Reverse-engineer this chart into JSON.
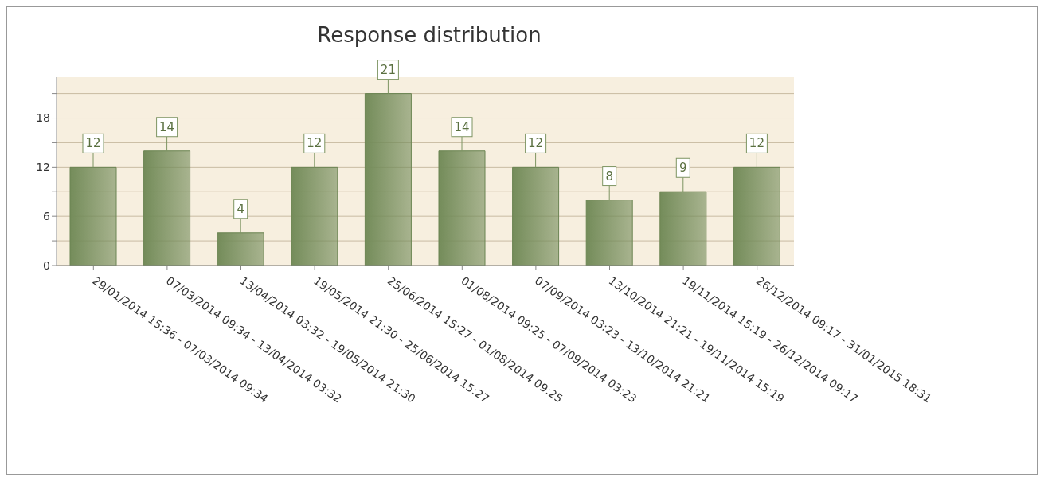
{
  "chart_data": {
    "type": "bar",
    "title": "Response distribution",
    "categories": [
      "29/01/2014 15:36 - 07/03/2014 09:34",
      "07/03/2014 09:34 - 13/04/2014 03:32",
      "13/04/2014 03:32 - 19/05/2014 21:30",
      "19/05/2014 21:30 - 25/06/2014 15:27",
      "25/06/2014 15:27 - 01/08/2014 09:25",
      "01/08/2014 09:25 - 07/09/2014 03:23",
      "07/09/2014 03:23 - 13/10/2014 21:21",
      "13/10/2014 21:21 - 19/11/2014 15:19",
      "19/11/2014 15:19 - 26/12/2014 09:17",
      "26/12/2014 09:17 - 31/01/2015 18:31"
    ],
    "values": [
      12,
      14,
      4,
      12,
      21,
      14,
      12,
      8,
      9,
      12
    ],
    "color": "#748c5a",
    "ylim": [
      0,
      23
    ],
    "yticks": [
      0,
      {
        "value": 3,
        "label": null
      },
      6,
      {
        "value": 9,
        "label": null
      },
      12,
      {
        "value": 15,
        "label": null
      },
      18,
      {
        "value": 21,
        "label": null
      }
    ],
    "grid": "y",
    "data_labels": true
  }
}
